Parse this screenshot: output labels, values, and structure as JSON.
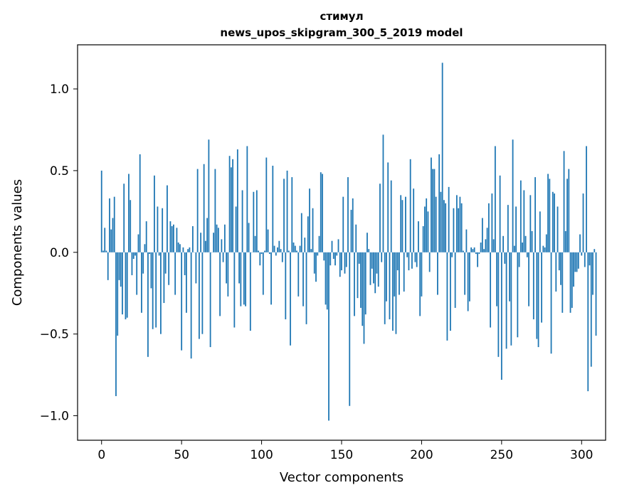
{
  "chart_data": {
    "type": "bar",
    "title": "стимул",
    "subtitle": "news_upos_skipgram_300_5_2019 model",
    "xlabel": "Vector components",
    "ylabel": "Components values",
    "xlim": [
      -15,
      315
    ],
    "ylim": [
      -1.15,
      1.27
    ],
    "xticks": [
      0,
      50,
      100,
      150,
      200,
      250,
      300
    ],
    "xtick_labels": [
      "0",
      "50",
      "100",
      "150",
      "200",
      "250",
      "300"
    ],
    "yticks": [
      -1.0,
      -0.5,
      0.0,
      0.5,
      1.0
    ],
    "ytick_labels": [
      "−1.0",
      "−0.5",
      "0.0",
      "0.5",
      "1.0"
    ],
    "bar_color": "#1f77b4",
    "grid": false,
    "values": [
      0.5,
      0.01,
      0.15,
      0.01,
      -0.17,
      0.33,
      0.14,
      0.21,
      0.34,
      -0.88,
      -0.51,
      -0.17,
      -0.21,
      -0.38,
      0.42,
      -0.41,
      -0.4,
      0.48,
      0.32,
      -0.14,
      -0.04,
      -0.02,
      -0.26,
      0.11,
      0.6,
      -0.37,
      -0.13,
      0.05,
      0.19,
      -0.64,
      -0.01,
      -0.22,
      -0.47,
      0.47,
      -0.46,
      0.28,
      -0.02,
      -0.5,
      0.27,
      -0.31,
      -0.13,
      0.41,
      -0.2,
      0.19,
      0.16,
      0.17,
      -0.26,
      0.15,
      0.06,
      0.05,
      -0.6,
      0.03,
      -0.14,
      -0.37,
      0.02,
      0.03,
      -0.65,
      0.16,
      0.0,
      -0.19,
      0.51,
      -0.53,
      0.12,
      -0.5,
      0.54,
      0.07,
      0.21,
      0.69,
      -0.58,
      0.0,
      0.12,
      0.51,
      0.17,
      0.15,
      -0.39,
      0.08,
      -0.06,
      0.17,
      -0.19,
      -0.27,
      0.59,
      0.52,
      0.57,
      -0.46,
      0.28,
      0.63,
      -0.19,
      -0.33,
      0.38,
      -0.32,
      -0.33,
      0.65,
      0.18,
      -0.48,
      0.0,
      0.37,
      0.1,
      0.38,
      0.01,
      -0.08,
      -0.01,
      -0.26,
      0.01,
      0.58,
      0.14,
      -0.01,
      -0.32,
      0.53,
      0.04,
      -0.02,
      0.03,
      0.07,
      0.02,
      -0.06,
      0.45,
      -0.41,
      0.5,
      0.01,
      -0.57,
      0.46,
      0.06,
      0.04,
      0.01,
      -0.27,
      0.04,
      0.24,
      -0.33,
      0.09,
      -0.44,
      0.22,
      0.39,
      0.02,
      0.27,
      -0.13,
      -0.18,
      -0.02,
      0.1,
      0.49,
      0.48,
      -0.05,
      -0.32,
      -0.35,
      -1.03,
      -0.08,
      0.07,
      -0.04,
      -0.08,
      -0.02,
      0.08,
      -0.15,
      -0.11,
      0.34,
      -0.13,
      -0.09,
      0.46,
      -0.94,
      0.26,
      0.33,
      -0.39,
      0.17,
      -0.28,
      -0.07,
      -0.34,
      -0.45,
      -0.56,
      -0.38,
      0.12,
      0.02,
      -0.2,
      -0.1,
      -0.19,
      -0.25,
      -0.13,
      -0.21,
      0.42,
      -0.06,
      0.72,
      -0.44,
      -0.3,
      0.55,
      -0.41,
      0.44,
      -0.48,
      -0.27,
      -0.5,
      -0.11,
      -0.26,
      0.35,
      0.32,
      -0.24,
      0.34,
      -0.03,
      -0.11,
      0.57,
      -0.1,
      0.39,
      -0.06,
      -0.09,
      0.19,
      -0.39,
      -0.27,
      0.16,
      0.28,
      0.33,
      0.25,
      -0.12,
      0.58,
      0.51,
      0.51,
      0.34,
      -0.26,
      0.6,
      0.37,
      1.16,
      0.32,
      0.3,
      -0.54,
      0.4,
      -0.48,
      -0.03,
      0.27,
      -0.34,
      0.35,
      0.27,
      0.34,
      0.3,
      0.01,
      -0.26,
      0.14,
      -0.36,
      -0.3,
      0.03,
      0.02,
      0.03,
      -0.01,
      -0.09,
      -0.01,
      0.06,
      0.21,
      0.02,
      0.08,
      0.15,
      0.3,
      -0.46,
      0.36,
      0.08,
      0.65,
      -0.33,
      -0.64,
      0.47,
      -0.78,
      0.1,
      -0.07,
      -0.59,
      0.29,
      -0.3,
      -0.57,
      0.69,
      0.04,
      0.28,
      -0.52,
      -0.09,
      0.44,
      0.06,
      0.38,
      0.1,
      -0.03,
      -0.33,
      0.35,
      0.13,
      -0.41,
      0.46,
      -0.53,
      -0.58,
      0.25,
      -0.43,
      0.04,
      0.03,
      0.11,
      0.48,
      0.45,
      -0.62,
      0.37,
      0.36,
      -0.24,
      0.28,
      -0.11,
      -0.2,
      -0.37,
      0.62,
      0.13,
      0.45,
      0.51,
      -0.37,
      -0.34,
      -0.21,
      -0.12,
      -0.12,
      -0.1,
      0.11,
      -0.02,
      0.36,
      -0.09,
      0.65,
      -0.85,
      -0.08,
      -0.7,
      -0.26,
      0.02,
      -0.51
    ]
  }
}
